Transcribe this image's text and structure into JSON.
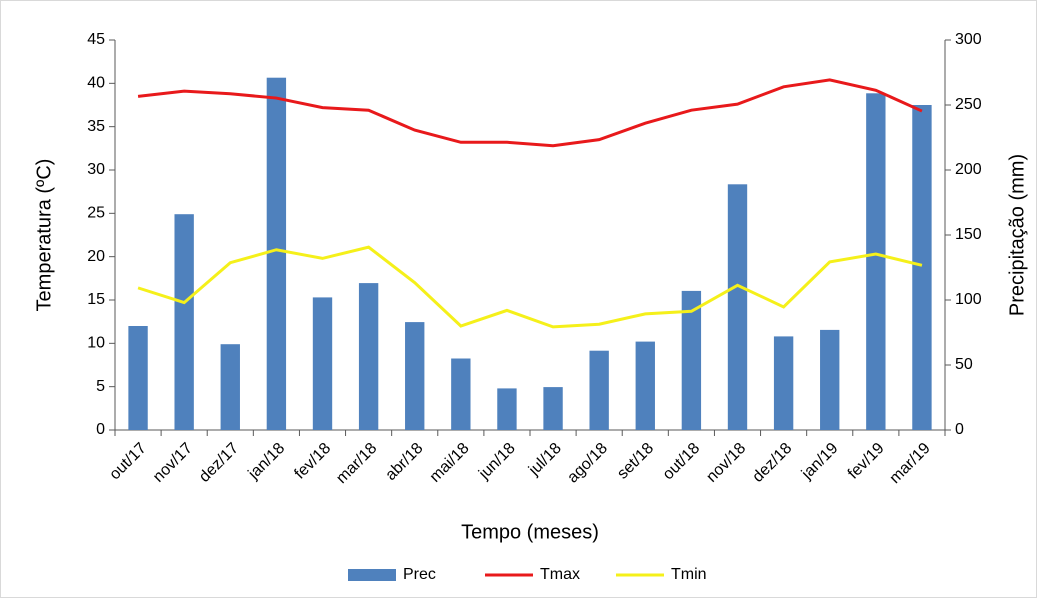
{
  "chart_data": {
    "type": "bar-line",
    "x_label": "Tempo (meses)",
    "y_label": "Temperatura (ºC)",
    "y2_label": "Precipitação (mm)",
    "categories": [
      "out/17",
      "nov/17",
      "dez/17",
      "jan/18",
      "fev/18",
      "mar/18",
      "abr/18",
      "mai/18",
      "jun/18",
      "jul/18",
      "ago/18",
      "set/18",
      "out/18",
      "nov/18",
      "dez/18",
      "jan/19",
      "fev/19",
      "mar/19"
    ],
    "series": [
      {
        "name": "Prec",
        "type": "bar",
        "axis": "y2",
        "color": "#4f81bd",
        "values": [
          80,
          166,
          66,
          271,
          102,
          113,
          83,
          55,
          32,
          33,
          61,
          68,
          107,
          189,
          72,
          77,
          259,
          250
        ]
      },
      {
        "name": "Tmax",
        "type": "line",
        "color": "#e8191b",
        "values": [
          38.5,
          39.1,
          38.8,
          38.3,
          37.2,
          36.9,
          34.6,
          33.2,
          33.2,
          32.8,
          33.5,
          35.4,
          36.9,
          37.6,
          39.6,
          40.4,
          39.2,
          36.8
        ]
      },
      {
        "name": "Tmin",
        "type": "line",
        "color": "#f5f01a",
        "values": [
          16.4,
          14.7,
          19.3,
          20.8,
          19.8,
          21.1,
          17,
          12,
          13.8,
          11.9,
          12.2,
          13.4,
          13.7,
          16.7,
          14.2,
          19.4,
          20.3,
          19
        ]
      }
    ],
    "ylim": [
      0,
      45
    ],
    "yticks": [
      0,
      5,
      10,
      15,
      20,
      25,
      30,
      35,
      40,
      45
    ],
    "y2lim": [
      0,
      300
    ],
    "y2ticks": [
      0,
      50,
      100,
      150,
      200,
      250,
      300
    ],
    "legend": "bottom"
  }
}
